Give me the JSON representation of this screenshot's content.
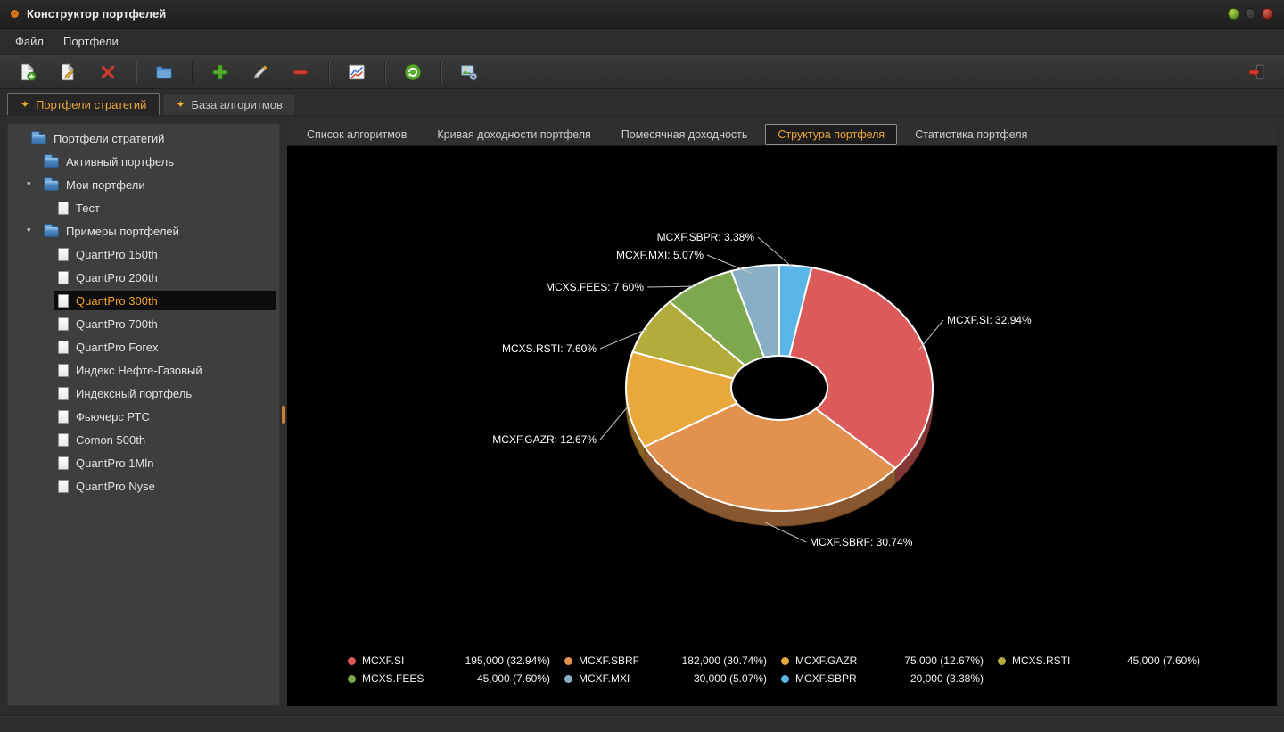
{
  "window": {
    "title": "Конструктор портфелей",
    "buttons": [
      "window-minimize-button",
      "window-maximize-button",
      "window-close-button"
    ]
  },
  "menu": {
    "items": [
      "Файл",
      "Портфели"
    ]
  },
  "toolbar": {
    "icons": [
      "new-portfolio-icon",
      "edit-portfolio-icon",
      "delete-portfolio-icon",
      "add-folder-icon",
      "add-algorithm-icon",
      "edit-algorithm-icon",
      "remove-algorithm-icon",
      "chart-icon",
      "refresh-icon",
      "report-settings-icon",
      "collapse-panel-icon"
    ]
  },
  "main_tabs": [
    {
      "label": "Портфели стратегий",
      "active": true
    },
    {
      "label": "База алгоритмов",
      "active": false
    }
  ],
  "tree": {
    "items": [
      {
        "label": "Портфели стратегий",
        "level": 0,
        "icon": "folder"
      },
      {
        "label": "Активный портфель",
        "level": 1,
        "icon": "folder"
      },
      {
        "label": "Мои портфели",
        "level": 1,
        "icon": "folder",
        "expanded": true
      },
      {
        "label": "Тест",
        "level": 2,
        "icon": "doc"
      },
      {
        "label": "Примеры портфелей",
        "level": 1,
        "icon": "folder",
        "expanded": true
      },
      {
        "label": "QuantPro 150th",
        "level": 2,
        "icon": "doc"
      },
      {
        "label": "QuantPro 200th",
        "level": 2,
        "icon": "doc"
      },
      {
        "label": "QuantPro 300th",
        "level": 2,
        "icon": "doc",
        "selected": true
      },
      {
        "label": "QuantPro 700th",
        "level": 2,
        "icon": "doc"
      },
      {
        "label": "QuantPro Forex",
        "level": 2,
        "icon": "doc"
      },
      {
        "label": "Индекс Нефте-Газовый",
        "level": 2,
        "icon": "doc"
      },
      {
        "label": "Индексный портфель",
        "level": 2,
        "icon": "doc"
      },
      {
        "label": "Фьючерс РТС",
        "level": 2,
        "icon": "doc"
      },
      {
        "label": "Comon 500th",
        "level": 2,
        "icon": "doc"
      },
      {
        "label": "QuantPro 1Mln",
        "level": 2,
        "icon": "doc"
      },
      {
        "label": "QuantPro Nyse",
        "level": 2,
        "icon": "doc"
      }
    ]
  },
  "content_tabs": [
    {
      "label": "Список алгоритмов",
      "active": false
    },
    {
      "label": "Кривая доходности портфеля",
      "active": false
    },
    {
      "label": "Помесячная доходность",
      "active": false
    },
    {
      "label": "Структура портфеля",
      "active": true
    },
    {
      "label": "Статистика портфеля",
      "active": false
    }
  ],
  "colors": {
    "accent": "#eba53a",
    "chart_background": "#000000"
  },
  "chart_data": {
    "type": "pie",
    "variant": "3d-donut",
    "legend_position": "bottom",
    "slice_order_clockwise_from_top": [
      "MCXF.SBPR",
      "MCXF.SI",
      "MCXF.SBRF",
      "MCXF.GAZR",
      "MCXS.RSTI",
      "MCXS.FEES",
      "MCXF.MXI"
    ],
    "series": [
      {
        "name": "MCXF.SI",
        "value": 195000,
        "value_display": "195,000",
        "pct": 32.94,
        "pct_display": "32.94%",
        "color": "#dc5a5a"
      },
      {
        "name": "MCXF.SBRF",
        "value": 182000,
        "value_display": "182,000",
        "pct": 30.74,
        "pct_display": "30.74%",
        "color": "#e2914e"
      },
      {
        "name": "MCXF.GAZR",
        "value": 75000,
        "value_display": "75,000",
        "pct": 12.67,
        "pct_display": "12.67%",
        "color": "#e9a83b"
      },
      {
        "name": "MCXS.RSTI",
        "value": 45000,
        "value_display": "45,000",
        "pct": 7.6,
        "pct_display": "7.60%",
        "color": "#b2ad3a"
      },
      {
        "name": "MCXS.FEES",
        "value": 45000,
        "value_display": "45,000",
        "pct": 7.6,
        "pct_display": "7.60%",
        "color": "#7ea84e"
      },
      {
        "name": "MCXF.MXI",
        "value": 30000,
        "value_display": "30,000",
        "pct": 5.07,
        "pct_display": "5.07%",
        "color": "#88afc4"
      },
      {
        "name": "MCXF.SBPR",
        "value": 20000,
        "value_display": "20,000",
        "pct": 3.38,
        "pct_display": "3.38%",
        "color": "#58b7e8"
      }
    ]
  }
}
